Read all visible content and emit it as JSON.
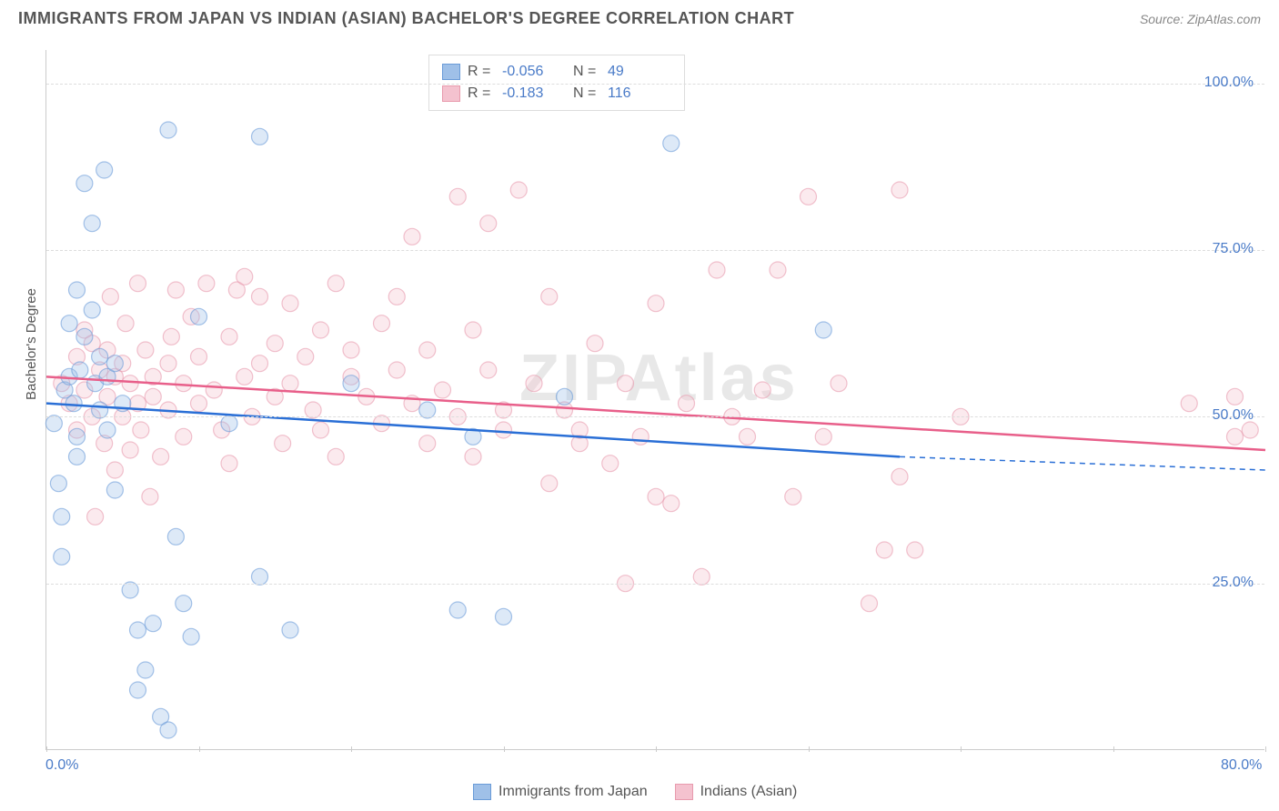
{
  "title": "IMMIGRANTS FROM JAPAN VS INDIAN (ASIAN) BACHELOR'S DEGREE CORRELATION CHART",
  "source": "Source: ZipAtlas.com",
  "watermark": "ZIPAtlas",
  "ylabel": "Bachelor's Degree",
  "chart": {
    "type": "scatter",
    "xlim": [
      0,
      80
    ],
    "ylim": [
      0,
      105
    ],
    "x_ticks": [
      0,
      10,
      20,
      30,
      40,
      50,
      60,
      70,
      80
    ],
    "y_grid": [
      25,
      50,
      75,
      100
    ],
    "y_tick_labels": [
      "25.0%",
      "50.0%",
      "75.0%",
      "100.0%"
    ],
    "x_tick_labels": {
      "0": "0.0%",
      "80": "80.0%"
    },
    "background_color": "#ffffff",
    "grid_color": "#dddddd",
    "axis_color": "#cccccc",
    "marker_radius": 9,
    "marker_opacity": 0.35,
    "line_width": 2.5
  },
  "series": {
    "blue": {
      "label": "Immigrants from Japan",
      "fill_color": "#9fc0e8",
      "stroke_color": "#6a9bd8",
      "line_color": "#2a6fd6",
      "R": "-0.056",
      "N": "49",
      "trend": {
        "x1": 0,
        "y1": 52,
        "x2": 56,
        "y2": 44,
        "dash_to_x": 80,
        "dash_to_y": 42
      },
      "points": [
        [
          0.5,
          49
        ],
        [
          0.8,
          40
        ],
        [
          1,
          35
        ],
        [
          1,
          29
        ],
        [
          1.2,
          54
        ],
        [
          1.5,
          56
        ],
        [
          1.5,
          64
        ],
        [
          1.8,
          52
        ],
        [
          2,
          47
        ],
        [
          2,
          44
        ],
        [
          2,
          69
        ],
        [
          2.2,
          57
        ],
        [
          2.5,
          62
        ],
        [
          2.5,
          85
        ],
        [
          3,
          66
        ],
        [
          3,
          79
        ],
        [
          3.2,
          55
        ],
        [
          3.5,
          59
        ],
        [
          3.5,
          51
        ],
        [
          3.8,
          87
        ],
        [
          4,
          56
        ],
        [
          4,
          48
        ],
        [
          4.5,
          58
        ],
        [
          4.5,
          39
        ],
        [
          5,
          52
        ],
        [
          5.5,
          24
        ],
        [
          6,
          9
        ],
        [
          6,
          18
        ],
        [
          6.5,
          12
        ],
        [
          7,
          19
        ],
        [
          7.5,
          5
        ],
        [
          8,
          3
        ],
        [
          8,
          93
        ],
        [
          8.5,
          32
        ],
        [
          9,
          22
        ],
        [
          9.5,
          17
        ],
        [
          10,
          65
        ],
        [
          12,
          49
        ],
        [
          14,
          26
        ],
        [
          14,
          92
        ],
        [
          16,
          18
        ],
        [
          20,
          55
        ],
        [
          25,
          51
        ],
        [
          27,
          21
        ],
        [
          28,
          47
        ],
        [
          30,
          20
        ],
        [
          34,
          53
        ],
        [
          41,
          91
        ],
        [
          51,
          63
        ]
      ]
    },
    "pink": {
      "label": "Indians (Asian)",
      "fill_color": "#f4c2cf",
      "stroke_color": "#e89aad",
      "line_color": "#e85f8a",
      "R": "-0.183",
      "N": "116",
      "trend": {
        "x1": 0,
        "y1": 56,
        "x2": 80,
        "y2": 45
      },
      "points": [
        [
          1,
          55
        ],
        [
          1.5,
          52
        ],
        [
          2,
          59
        ],
        [
          2,
          48
        ],
        [
          2.5,
          63
        ],
        [
          2.5,
          54
        ],
        [
          3,
          61
        ],
        [
          3,
          50
        ],
        [
          3.2,
          35
        ],
        [
          3.5,
          57
        ],
        [
          3.8,
          46
        ],
        [
          4,
          60
        ],
        [
          4,
          53
        ],
        [
          4.2,
          68
        ],
        [
          4.5,
          42
        ],
        [
          4.5,
          56
        ],
        [
          5,
          58
        ],
        [
          5,
          50
        ],
        [
          5.2,
          64
        ],
        [
          5.5,
          45
        ],
        [
          5.5,
          55
        ],
        [
          6,
          52
        ],
        [
          6,
          70
        ],
        [
          6.2,
          48
        ],
        [
          6.5,
          60
        ],
        [
          6.8,
          38
        ],
        [
          7,
          56
        ],
        [
          7,
          53
        ],
        [
          7.5,
          44
        ],
        [
          8,
          58
        ],
        [
          8,
          51
        ],
        [
          8.2,
          62
        ],
        [
          8.5,
          69
        ],
        [
          9,
          55
        ],
        [
          9,
          47
        ],
        [
          9.5,
          65
        ],
        [
          10,
          59
        ],
        [
          10,
          52
        ],
        [
          10.5,
          70
        ],
        [
          11,
          54
        ],
        [
          11.5,
          48
        ],
        [
          12,
          62
        ],
        [
          12,
          43
        ],
        [
          12.5,
          69
        ],
        [
          13,
          56
        ],
        [
          13,
          71
        ],
        [
          13.5,
          50
        ],
        [
          14,
          68
        ],
        [
          14,
          58
        ],
        [
          15,
          53
        ],
        [
          15,
          61
        ],
        [
          15.5,
          46
        ],
        [
          16,
          67
        ],
        [
          16,
          55
        ],
        [
          17,
          59
        ],
        [
          17.5,
          51
        ],
        [
          18,
          48
        ],
        [
          18,
          63
        ],
        [
          19,
          70
        ],
        [
          19,
          44
        ],
        [
          20,
          56
        ],
        [
          20,
          60
        ],
        [
          21,
          53
        ],
        [
          22,
          49
        ],
        [
          22,
          64
        ],
        [
          23,
          68
        ],
        [
          23,
          57
        ],
        [
          24,
          52
        ],
        [
          24,
          77
        ],
        [
          25,
          46
        ],
        [
          25,
          60
        ],
        [
          26,
          54
        ],
        [
          27,
          50
        ],
        [
          27,
          83
        ],
        [
          28,
          63
        ],
        [
          28,
          44
        ],
        [
          29,
          79
        ],
        [
          29,
          57
        ],
        [
          30,
          51
        ],
        [
          30,
          48
        ],
        [
          31,
          84
        ],
        [
          32,
          55
        ],
        [
          33,
          40
        ],
        [
          33,
          68
        ],
        [
          34,
          51
        ],
        [
          35,
          46
        ],
        [
          35,
          48
        ],
        [
          36,
          61
        ],
        [
          37,
          43
        ],
        [
          38,
          25
        ],
        [
          38,
          55
        ],
        [
          39,
          47
        ],
        [
          40,
          67
        ],
        [
          40,
          38
        ],
        [
          41,
          37
        ],
        [
          42,
          52
        ],
        [
          43,
          26
        ],
        [
          44,
          72
        ],
        [
          45,
          50
        ],
        [
          46,
          47
        ],
        [
          47,
          54
        ],
        [
          48,
          72
        ],
        [
          49,
          38
        ],
        [
          50,
          83
        ],
        [
          51,
          47
        ],
        [
          52,
          55
        ],
        [
          54,
          22
        ],
        [
          55,
          30
        ],
        [
          56,
          41
        ],
        [
          56,
          84
        ],
        [
          57,
          30
        ],
        [
          60,
          50
        ],
        [
          75,
          52
        ],
        [
          78,
          47
        ],
        [
          78,
          53
        ],
        [
          79,
          48
        ]
      ]
    }
  },
  "bottom_legend": [
    {
      "swatch": "blue",
      "text": "Immigrants from Japan"
    },
    {
      "swatch": "pink",
      "text": "Indians (Asian)"
    }
  ]
}
